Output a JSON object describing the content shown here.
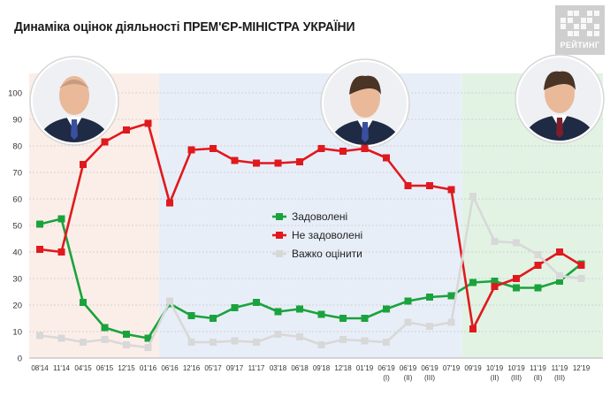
{
  "header": {
    "title": "Динаміка оцінок діяльності ПРЕМ'ЄР-МІНІСТРА УКРАЇНИ",
    "logo_text": "РЕЙТИНГ"
  },
  "colors": {
    "satisfied": "#1aa33c",
    "unsatisfied": "#e0191e",
    "hard": "#d8d8d8",
    "period1_bg": "#fbeee8",
    "period2_bg": "#e8eef8",
    "period3_bg": "#e2f3e4"
  },
  "portraits": [
    {
      "name": "yatsenyuk-portrait",
      "icon": "person-portrait-icon"
    },
    {
      "name": "groysman-portrait",
      "icon": "person-portrait-icon"
    },
    {
      "name": "honcharuk-portrait",
      "icon": "person-portrait-icon"
    }
  ],
  "chart_data": {
    "type": "line",
    "categories": [
      [
        "08'14"
      ],
      [
        "11'14"
      ],
      [
        "04'15"
      ],
      [
        "06'15"
      ],
      [
        "12'15"
      ],
      [
        "01'16"
      ],
      [
        "06'16"
      ],
      [
        "12'16"
      ],
      [
        "05'17"
      ],
      [
        "09'17"
      ],
      [
        "11'17"
      ],
      [
        "03'18"
      ],
      [
        "06'18"
      ],
      [
        "09'18"
      ],
      [
        "12'18"
      ],
      [
        "01'19"
      ],
      [
        "06'19",
        "(I)"
      ],
      [
        "06'19",
        "(II)"
      ],
      [
        "06'19",
        "(III)"
      ],
      [
        "07'19"
      ],
      [
        "09'19"
      ],
      [
        "10'19",
        "(II)"
      ],
      [
        "10'19",
        "(III)"
      ],
      [
        "11'19",
        "(II)"
      ],
      [
        "11'19",
        "(III)"
      ],
      [
        "12'19"
      ]
    ],
    "yticks": [
      0,
      10,
      20,
      30,
      40,
      50,
      60,
      70,
      80,
      90,
      100
    ],
    "ylim": [
      0,
      100
    ],
    "grid": true,
    "legend_position": "center",
    "periods": [
      {
        "from": 0,
        "to": 5
      },
      {
        "from": 6,
        "to": 19
      },
      {
        "from": 20,
        "to": 25
      }
    ],
    "series": [
      {
        "name": "Задоволені",
        "color": "#1aa33c",
        "values": [
          [
            0,
            50.5
          ],
          [
            1,
            52.5
          ],
          [
            2,
            21
          ],
          [
            3,
            11.5
          ],
          [
            4,
            9
          ],
          [
            5,
            7.5
          ],
          [
            6,
            20.5
          ],
          [
            7,
            16
          ],
          [
            8,
            15
          ],
          [
            9,
            19
          ],
          [
            10,
            21
          ],
          [
            11,
            17.5
          ],
          [
            12,
            18.5
          ],
          [
            13,
            16.5
          ],
          [
            14,
            15
          ],
          [
            15,
            15
          ],
          [
            16,
            18.5
          ],
          [
            17,
            21.5
          ],
          [
            18,
            23
          ],
          [
            19,
            23.5
          ],
          [
            20,
            28.5
          ],
          [
            21,
            29
          ],
          [
            22,
            26.5
          ],
          [
            23,
            26.5
          ],
          [
            24,
            29
          ],
          [
            25,
            35.5
          ]
        ]
      },
      {
        "name": "Не задоволені",
        "color": "#e0191e",
        "values": [
          [
            0,
            41
          ],
          [
            1,
            40
          ],
          [
            2,
            73
          ],
          [
            3,
            81.5
          ],
          [
            4,
            86
          ],
          [
            5,
            88.5
          ],
          [
            6,
            58.5
          ],
          [
            7,
            78.5
          ],
          [
            8,
            79
          ],
          [
            9,
            74.5
          ],
          [
            10,
            73.5
          ],
          [
            11,
            73.5
          ],
          [
            12,
            74
          ],
          [
            13,
            79
          ],
          [
            14,
            78
          ],
          [
            15,
            79
          ],
          [
            16,
            75.5
          ],
          [
            17,
            65
          ],
          [
            18,
            65
          ],
          [
            19,
            63.5
          ],
          [
            20,
            11
          ],
          [
            21,
            27
          ],
          [
            22,
            30
          ],
          [
            23,
            35
          ],
          [
            24,
            40
          ],
          [
            25,
            35
          ]
        ]
      },
      {
        "name": "Важко оцінити",
        "color": "#d8d8d8",
        "values": [
          [
            0,
            8.5
          ],
          [
            1,
            7.5
          ],
          [
            2,
            6
          ],
          [
            3,
            7
          ],
          [
            4,
            5
          ],
          [
            5,
            4
          ],
          [
            6,
            21.5
          ],
          [
            7,
            6
          ],
          [
            8,
            6
          ],
          [
            9,
            6.5
          ],
          [
            10,
            6
          ],
          [
            11,
            9
          ],
          [
            12,
            8
          ],
          [
            13,
            5
          ],
          [
            14,
            7
          ],
          [
            15,
            6.5
          ],
          [
            16,
            6
          ],
          [
            17,
            13.5
          ],
          [
            18,
            12
          ],
          [
            19,
            13.5
          ],
          [
            20,
            61
          ],
          [
            21,
            44
          ],
          [
            22,
            43.5
          ],
          [
            23,
            39
          ],
          [
            24,
            31
          ],
          [
            25,
            30
          ]
        ]
      }
    ]
  }
}
